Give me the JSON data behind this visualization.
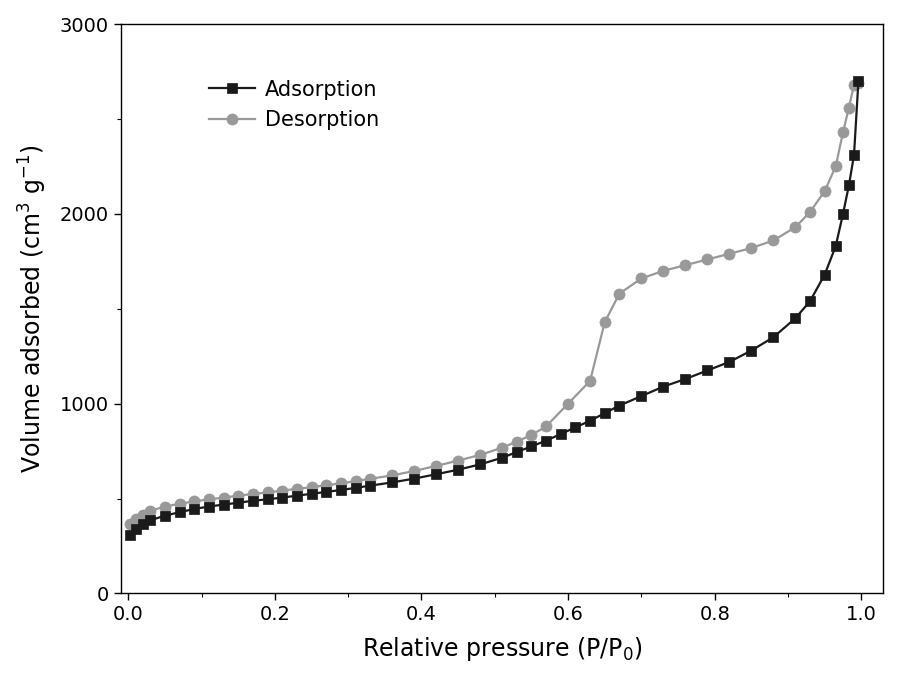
{
  "adsorption_x": [
    0.003,
    0.01,
    0.02,
    0.03,
    0.05,
    0.07,
    0.09,
    0.11,
    0.13,
    0.15,
    0.17,
    0.19,
    0.21,
    0.23,
    0.25,
    0.27,
    0.29,
    0.31,
    0.33,
    0.36,
    0.39,
    0.42,
    0.45,
    0.48,
    0.51,
    0.53,
    0.55,
    0.57,
    0.59,
    0.61,
    0.63,
    0.65,
    0.67,
    0.7,
    0.73,
    0.76,
    0.79,
    0.82,
    0.85,
    0.88,
    0.91,
    0.93,
    0.95,
    0.965,
    0.975,
    0.983,
    0.99,
    0.996
  ],
  "adsorption_y": [
    310,
    340,
    365,
    385,
    410,
    428,
    445,
    458,
    468,
    478,
    488,
    496,
    505,
    515,
    525,
    535,
    545,
    556,
    568,
    585,
    605,
    628,
    652,
    680,
    715,
    745,
    775,
    805,
    840,
    875,
    910,
    950,
    990,
    1040,
    1090,
    1130,
    1175,
    1220,
    1280,
    1350,
    1450,
    1540,
    1680,
    1830,
    2000,
    2150,
    2310,
    2700
  ],
  "desorption_x": [
    0.003,
    0.01,
    0.02,
    0.03,
    0.05,
    0.07,
    0.09,
    0.11,
    0.13,
    0.15,
    0.17,
    0.19,
    0.21,
    0.23,
    0.25,
    0.27,
    0.29,
    0.31,
    0.33,
    0.36,
    0.39,
    0.42,
    0.45,
    0.48,
    0.51,
    0.53,
    0.55,
    0.57,
    0.6,
    0.63,
    0.65,
    0.67,
    0.7,
    0.73,
    0.76,
    0.79,
    0.82,
    0.85,
    0.88,
    0.91,
    0.93,
    0.95,
    0.965,
    0.975,
    0.983,
    0.99,
    0.996
  ],
  "desorption_y": [
    365,
    390,
    415,
    435,
    458,
    472,
    485,
    496,
    505,
    515,
    524,
    532,
    542,
    551,
    560,
    570,
    580,
    592,
    604,
    622,
    645,
    672,
    700,
    730,
    768,
    800,
    835,
    880,
    1000,
    1120,
    1430,
    1580,
    1660,
    1700,
    1730,
    1760,
    1790,
    1820,
    1860,
    1930,
    2010,
    2120,
    2250,
    2430,
    2560,
    2680,
    2690
  ],
  "adsorption_color": "#1a1a1a",
  "desorption_color": "#999999",
  "adsorption_label": "Adsorption",
  "desorption_label": "Desorption",
  "xlabel": "Relative pressure (P/P$_0$)",
  "ylabel": "Volume adsorbed (cm$^3$ g$^{-1}$)",
  "xlim": [
    -0.01,
    1.03
  ],
  "ylim": [
    0,
    3000
  ],
  "yticks": [
    0,
    1000,
    2000,
    3000
  ],
  "xticks": [
    0.0,
    0.2,
    0.4,
    0.6,
    0.8,
    1.0
  ],
  "figsize": [
    9.0,
    6.8
  ],
  "dpi": 100,
  "linewidth": 1.6,
  "markersize_square": 7,
  "markersize_circle": 8
}
